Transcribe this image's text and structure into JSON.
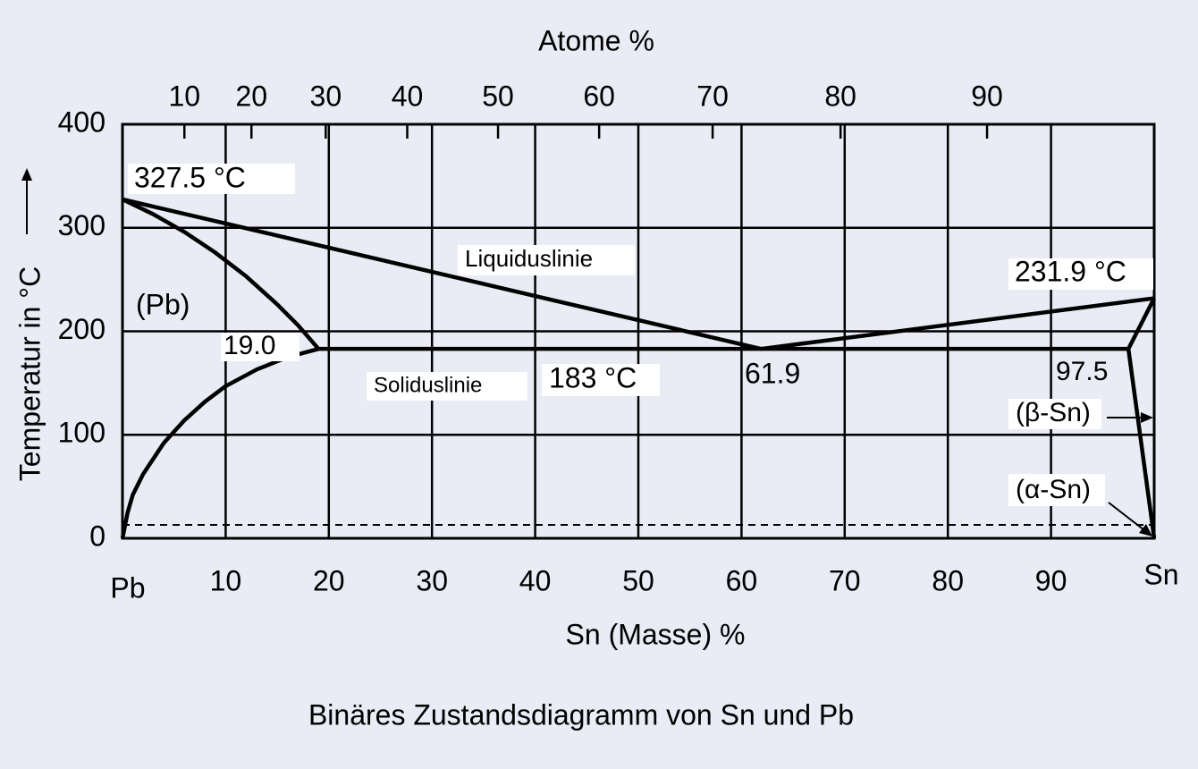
{
  "chart_data": {
    "type": "line",
    "title": "Binäres Zustandsdiagramm von Sn und Pb",
    "xlabel": "Sn (Masse) %",
    "x2label": "Atome %",
    "ylabel": "Temperatur in °C",
    "xlim": [
      0,
      100
    ],
    "ylim": [
      0,
      400
    ],
    "xticks": [
      {
        "value": 0,
        "label": "Pb"
      },
      10,
      20,
      30,
      40,
      50,
      60,
      70,
      80,
      90,
      {
        "value": 100,
        "label": "Sn"
      }
    ],
    "yticks": [
      0,
      100,
      200,
      300,
      400
    ],
    "x2ticks": [
      {
        "value": 6.0,
        "label": "10"
      },
      {
        "value": 12.5,
        "label": "20"
      },
      {
        "value": 19.7,
        "label": "30"
      },
      {
        "value": 27.6,
        "label": "40"
      },
      {
        "value": 36.4,
        "label": "50"
      },
      {
        "value": 46.2,
        "label": "60"
      },
      {
        "value": 57.2,
        "label": "70"
      },
      {
        "value": 69.6,
        "label": "80"
      },
      {
        "value": 83.8,
        "label": "90"
      }
    ],
    "grid": true,
    "color": "#000000",
    "lines": [
      {
        "x": [
          0,
          61.9,
          100
        ],
        "values": [
          327.5,
          183,
          231.9
        ]
      },
      {
        "x": [
          0,
          3,
          6,
          9,
          12,
          15,
          17,
          19
        ],
        "values": [
          327.5,
          313,
          296,
          276,
          253,
          226,
          206,
          183
        ]
      },
      {
        "x": [
          0,
          0.5,
          1,
          2,
          4,
          6,
          8,
          10,
          13,
          16,
          19
        ],
        "values": [
          0,
          25,
          42,
          62,
          92,
          114,
          132,
          147,
          163,
          175,
          183
        ]
      },
      {
        "x": [
          19,
          97.5
        ],
        "values": [
          183,
          183
        ]
      },
      {
        "x": [
          100,
          97.5,
          100
        ],
        "values": [
          231.9,
          183,
          0
        ]
      },
      {
        "x": [
          0,
          100
        ],
        "values": [
          13,
          13
        ],
        "dashed": true
      }
    ],
    "annotations": [
      "327.5 °C",
      "Liquiduslinie",
      "231.9 °C",
      "(Pb)",
      "19.0",
      "Soliduslinie",
      "183 °C",
      "61.9",
      "97.5",
      "(β-Sn)",
      "(α-Sn)"
    ]
  }
}
